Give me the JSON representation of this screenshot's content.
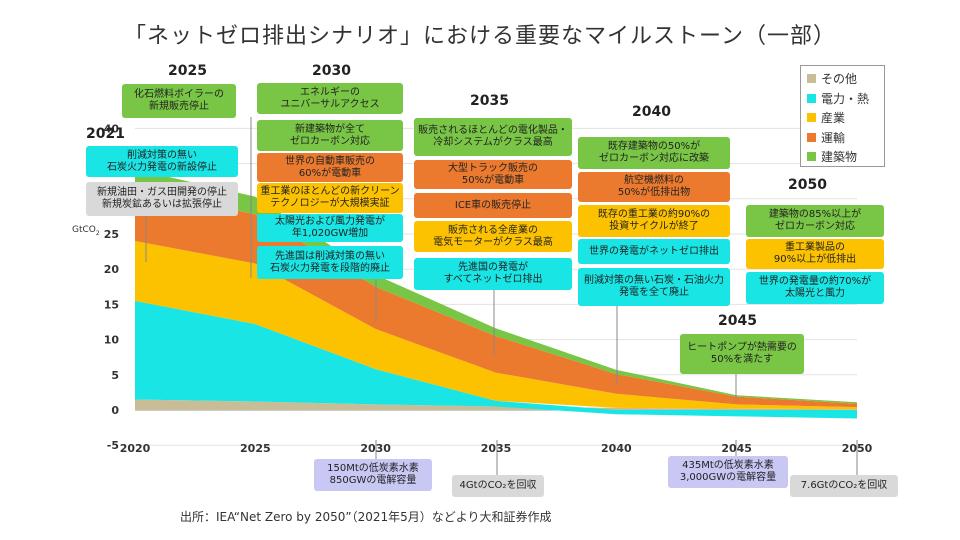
{
  "title": "「ネットゼロ排出シナリオ」における重要なマイルストーン（一部）",
  "source": "出所：IEA“Net Zero by 2050”（2021年5月）などより大和証券作成",
  "colors": {
    "その他": "#c9bd97",
    "電力・熱": "#19e5e5",
    "産業": "#fcc200",
    "運輸": "#ec7a2e",
    "建築物": "#79c545",
    "green_box": "#79c545",
    "orange_box": "#ec7a2e",
    "yellow_box": "#fcc200",
    "cyan_box": "#19e5e5",
    "gray_box": "#d9d9d9",
    "lavender_box": "#c9c8f5"
  },
  "chart_data": {
    "type": "area",
    "stacked": true,
    "unit": "GtCO2",
    "x": [
      2020,
      2025,
      2030,
      2035,
      2040,
      2045,
      2050
    ],
    "ylim": [
      -5,
      40
    ],
    "yticks": [
      -5,
      0,
      5,
      10,
      15,
      20,
      25,
      30,
      35,
      40
    ],
    "legend_position": "top-right",
    "series": [
      {
        "name": "その他",
        "values": [
          1.5,
          1.2,
          0.8,
          0.5,
          0.3,
          0.2,
          0.1
        ]
      },
      {
        "name": "電力・熱",
        "values": [
          14,
          11,
          5,
          0.8,
          -0.6,
          -0.9,
          -1.2
        ]
      },
      {
        "name": "産業",
        "values": [
          8.5,
          8.6,
          5.7,
          4,
          2,
          0.6,
          0.3
        ]
      },
      {
        "name": "運輸",
        "values": [
          7.3,
          7,
          6,
          5.2,
          2.8,
          1.1,
          0.5
        ]
      },
      {
        "name": "建築物",
        "values": [
          2.9,
          2.5,
          1.7,
          1.1,
          0.6,
          0.2,
          0.2
        ]
      }
    ]
  },
  "milestones": {
    "y2021": {
      "year": "2021",
      "items": [
        {
          "text": "削減対策の無い\n石炭火力発電の新設停止",
          "kind": "cyan"
        },
        {
          "text": "新規油田・ガス田開発の停止\n新規炭鉱あるいは拡張停止",
          "kind": "gray"
        }
      ]
    },
    "y2025": {
      "year": "2025",
      "items": [
        {
          "text": "化石燃料ボイラーの\n新規販売停止",
          "kind": "green"
        }
      ]
    },
    "y2030": {
      "year": "2030",
      "items": [
        {
          "text": "エネルギーの\nユニバーサルアクセス",
          "kind": "green"
        },
        {
          "text": "新建築物が全て\nゼロカーボン対応",
          "kind": "green"
        },
        {
          "text": "世界の自動車販売の\n60%が電動車",
          "kind": "orange"
        },
        {
          "text": "重工業のほとんどの新クリーン\nテクノロジーが大規模実証",
          "kind": "yellow"
        },
        {
          "text": "太陽光および風力発電が\n年1,020GW増加",
          "kind": "cyan"
        },
        {
          "text": "先進国は削減対策の無い\n石炭火力発電を段階的廃止",
          "kind": "cyan"
        }
      ],
      "note": "150Mtの低炭素水素\n850GWの電解容量"
    },
    "y2035": {
      "year": "2035",
      "items": [
        {
          "text": "販売されるほとんどの電化製品・\n冷却システムがクラス最高",
          "kind": "green"
        },
        {
          "text": "大型トラック販売の\n50%が電動車",
          "kind": "orange"
        },
        {
          "text": "ICE車の販売停止",
          "kind": "orange"
        },
        {
          "text": "販売される全産業の\n電気モーターがクラス最高",
          "kind": "yellow"
        },
        {
          "text": "先進国の発電が\nすべてネットゼロ排出",
          "kind": "cyan"
        }
      ],
      "note": "4GtのCO₂を回収"
    },
    "y2040": {
      "year": "2040",
      "items": [
        {
          "text": "既存建築物の50%が\nゼロカーボン対応に改築",
          "kind": "green"
        },
        {
          "text": "航空機燃料の\n50%が低排出物",
          "kind": "orange"
        },
        {
          "text": "既存の重工業の約90%の\n投資サイクルが終了",
          "kind": "yellow"
        },
        {
          "text": "世界の発電がネットゼロ排出",
          "kind": "cyan"
        },
        {
          "text": "削減対策の無い石炭・石油火力\n発電を全て廃止",
          "kind": "cyan"
        }
      ]
    },
    "y2045": {
      "year": "2045",
      "items": [
        {
          "text": "ヒートポンプが熱需要の\n50%を満たす",
          "kind": "green"
        }
      ],
      "note": "435Mtの低炭素水素\n3,000GWの電解容量"
    },
    "y2050": {
      "year": "2050",
      "items": [
        {
          "text": "建築物の85%以上が\nゼロカーボン対応",
          "kind": "green"
        },
        {
          "text": "重工業製品の\n90%以上が低排出",
          "kind": "yellow"
        },
        {
          "text": "世界の発電量の約70%が\n太陽光と風力",
          "kind": "cyan"
        }
      ],
      "note": "7.6GtのCO₂を回収"
    }
  }
}
